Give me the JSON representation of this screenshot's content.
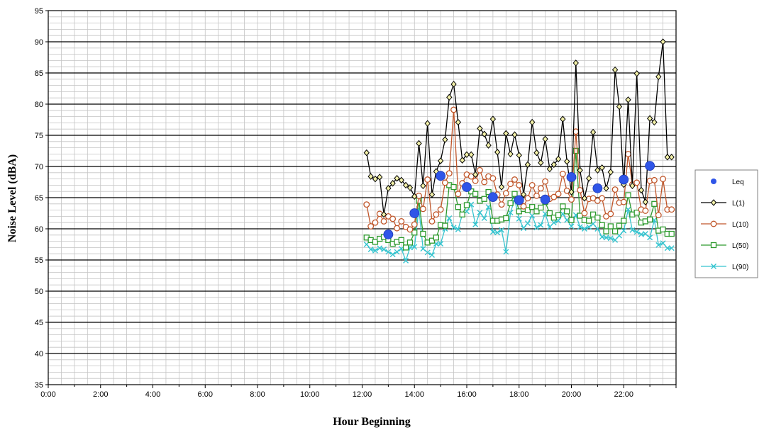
{
  "chart_data": {
    "type": "line",
    "title": "",
    "xlabel": "Hour Beginning",
    "ylabel": "Noise Level (dBA)",
    "xlim": [
      0,
      24
    ],
    "ylim": [
      35,
      95
    ],
    "x_ticks": [
      {
        "value": 0,
        "label": "0:00"
      },
      {
        "value": 2,
        "label": "2:00"
      },
      {
        "value": 4,
        "label": "4:00"
      },
      {
        "value": 6,
        "label": "6:00"
      },
      {
        "value": 8,
        "label": "8:00"
      },
      {
        "value": 10,
        "label": "10:00"
      },
      {
        "value": 12,
        "label": "12:00"
      },
      {
        "value": 14,
        "label": "14:00"
      },
      {
        "value": 16,
        "label": "16:00"
      },
      {
        "value": 18,
        "label": "18:00"
      },
      {
        "value": 20,
        "label": "20:00"
      },
      {
        "value": 22,
        "label": "22:00"
      }
    ],
    "y_ticks": [
      35,
      40,
      45,
      50,
      55,
      60,
      65,
      70,
      75,
      80,
      85,
      90,
      95
    ],
    "grid": true,
    "legend_position": "right",
    "series": [
      {
        "name": "Leq",
        "style": "markers",
        "marker": "circle",
        "color": "#2f55e8",
        "x": [
          13,
          14,
          15,
          16,
          17,
          18,
          19,
          20,
          21,
          22,
          23
        ],
        "y": [
          59.1,
          62.5,
          68.5,
          66.7,
          65.1,
          64.6,
          64.7,
          68.3,
          66.5,
          67.9,
          70.1
        ]
      },
      {
        "name": "L(1)",
        "style": "line",
        "marker": "diamond",
        "color": "#000000",
        "marker_fill": "#f2f0a8",
        "x": [
          12.17,
          12.33,
          12.5,
          12.67,
          12.83,
          13.0,
          13.17,
          13.33,
          13.5,
          13.67,
          13.83,
          14.0,
          14.17,
          14.33,
          14.5,
          14.67,
          14.83,
          15.0,
          15.17,
          15.33,
          15.5,
          15.67,
          15.83,
          16.0,
          16.17,
          16.33,
          16.5,
          16.67,
          16.83,
          17.0,
          17.17,
          17.33,
          17.5,
          17.67,
          17.83,
          18.0,
          18.17,
          18.33,
          18.5,
          18.67,
          18.83,
          19.0,
          19.17,
          19.33,
          19.5,
          19.67,
          19.83,
          20.0,
          20.17,
          20.33,
          20.5,
          20.67,
          20.83,
          21.0,
          21.17,
          21.33,
          21.5,
          21.67,
          21.83,
          22.0,
          22.17,
          22.33,
          22.5,
          22.67,
          22.83,
          23.0,
          23.17,
          23.33,
          23.5,
          23.67,
          23.83
        ],
        "y": [
          72.2,
          68.4,
          68.0,
          68.3,
          62.3,
          66.5,
          67.3,
          68.1,
          67.8,
          67.0,
          66.6,
          65.2,
          73.7,
          66.9,
          76.9,
          65.5,
          69.2,
          70.9,
          74.3,
          81.1,
          83.2,
          77.1,
          71.0,
          71.9,
          71.9,
          68.7,
          76.1,
          75.2,
          73.4,
          77.6,
          72.3,
          66.7,
          75.3,
          72.0,
          75.1,
          71.8,
          65.5,
          70.3,
          77.1,
          72.2,
          70.6,
          74.4,
          69.6,
          70.3,
          71.2,
          77.6,
          70.8,
          65.9,
          86.6,
          69.4,
          64.9,
          68.1,
          75.5,
          69.4,
          69.8,
          66.5,
          69.1,
          85.5,
          79.6,
          67.1,
          80.7,
          66.9,
          84.9,
          66.2,
          64.3,
          77.7,
          77.1,
          84.4,
          90.0,
          71.5,
          71.5
        ]
      },
      {
        "name": "L(10)",
        "style": "line",
        "marker": "circle-open",
        "color": "#c0562a",
        "x": [
          12.17,
          12.33,
          12.5,
          12.67,
          12.83,
          13.0,
          13.17,
          13.33,
          13.5,
          13.67,
          13.83,
          14.0,
          14.17,
          14.33,
          14.5,
          14.67,
          14.83,
          15.0,
          15.17,
          15.33,
          15.5,
          15.67,
          15.83,
          16.0,
          16.17,
          16.33,
          16.5,
          16.67,
          16.83,
          17.0,
          17.17,
          17.33,
          17.5,
          17.67,
          17.83,
          18.0,
          18.17,
          18.33,
          18.5,
          18.67,
          18.83,
          19.0,
          19.17,
          19.33,
          19.5,
          19.67,
          19.83,
          20.0,
          20.17,
          20.33,
          20.5,
          20.67,
          20.83,
          21.0,
          21.17,
          21.33,
          21.5,
          21.67,
          21.83,
          22.0,
          22.17,
          22.33,
          22.5,
          22.67,
          22.83,
          23.0,
          23.17,
          23.33,
          23.5,
          23.67,
          23.83
        ],
        "y": [
          63.9,
          60.4,
          61.0,
          62.4,
          61.2,
          62.0,
          61.6,
          60.1,
          61.2,
          60.3,
          59.9,
          60.7,
          65.3,
          63.2,
          67.9,
          61.2,
          62.3,
          63.1,
          67.4,
          68.9,
          79.1,
          65.6,
          67.3,
          68.7,
          68.4,
          67.7,
          69.4,
          67.5,
          68.4,
          68.1,
          65.5,
          63.9,
          65.7,
          67.2,
          67.9,
          67.0,
          63.6,
          64.9,
          67.0,
          65.3,
          66.5,
          67.6,
          64.8,
          65.1,
          65.6,
          68.8,
          66.1,
          64.7,
          75.6,
          66.2,
          62.5,
          64.8,
          64.9,
          64.5,
          64.9,
          62.0,
          62.4,
          66.3,
          64.2,
          64.3,
          72.0,
          67.1,
          67.4,
          63.1,
          62.9,
          67.7,
          67.8,
          62.2,
          68.0,
          63.1,
          63.1
        ]
      },
      {
        "name": "L(50)",
        "style": "line",
        "marker": "square-open",
        "color": "#2e9a2e",
        "x": [
          12.17,
          12.33,
          12.5,
          12.67,
          12.83,
          13.0,
          13.17,
          13.33,
          13.5,
          13.67,
          13.83,
          14.0,
          14.17,
          14.33,
          14.5,
          14.67,
          14.83,
          15.0,
          15.17,
          15.33,
          15.5,
          15.67,
          15.83,
          16.0,
          16.17,
          16.33,
          16.5,
          16.67,
          16.83,
          17.0,
          17.17,
          17.33,
          17.5,
          17.67,
          17.83,
          18.0,
          18.17,
          18.33,
          18.5,
          18.67,
          18.83,
          19.0,
          19.17,
          19.33,
          19.5,
          19.67,
          19.83,
          20.0,
          20.17,
          20.33,
          20.5,
          20.67,
          20.83,
          21.0,
          21.17,
          21.33,
          21.5,
          21.67,
          21.83,
          22.0,
          22.17,
          22.33,
          22.5,
          22.67,
          22.83,
          23.0,
          23.17,
          23.33,
          23.5,
          23.67,
          23.83
        ],
        "y": [
          58.6,
          58.2,
          57.9,
          58.4,
          58.7,
          58.2,
          57.6,
          57.9,
          58.2,
          57.0,
          57.8,
          59.4,
          64.5,
          59.2,
          57.8,
          58.1,
          58.6,
          60.6,
          60.5,
          67.0,
          66.7,
          63.5,
          62.3,
          63.8,
          66.0,
          65.6,
          64.5,
          64.8,
          65.9,
          61.3,
          61.3,
          61.5,
          61.7,
          64.1,
          65.6,
          62.8,
          63.2,
          63.0,
          63.5,
          62.8,
          63.4,
          64.3,
          62.5,
          61.8,
          62.2,
          63.6,
          62.8,
          61.4,
          72.5,
          62.1,
          61.4,
          61.3,
          62.3,
          61.8,
          60.6,
          59.6,
          60.4,
          59.6,
          60.5,
          61.3,
          65.4,
          62.3,
          62.6,
          61.0,
          61.2,
          61.5,
          64.0,
          59.7,
          59.9,
          59.2,
          59.2
        ]
      },
      {
        "name": "L(90)",
        "style": "line",
        "marker": "x",
        "color": "#35c4cf",
        "x": [
          12.17,
          12.33,
          12.5,
          12.67,
          12.83,
          13.0,
          13.17,
          13.33,
          13.5,
          13.67,
          13.83,
          14.0,
          14.17,
          14.33,
          14.5,
          14.67,
          14.83,
          15.0,
          15.17,
          15.33,
          15.5,
          15.67,
          15.83,
          16.0,
          16.17,
          16.33,
          16.5,
          16.67,
          16.83,
          17.0,
          17.17,
          17.33,
          17.5,
          17.67,
          17.83,
          18.0,
          18.17,
          18.33,
          18.5,
          18.67,
          18.83,
          19.0,
          19.17,
          19.33,
          19.5,
          19.67,
          19.83,
          20.0,
          20.17,
          20.33,
          20.5,
          20.67,
          20.83,
          21.0,
          21.17,
          21.33,
          21.5,
          21.67,
          21.83,
          22.0,
          22.17,
          22.33,
          22.5,
          22.67,
          22.83,
          23.0,
          23.17,
          23.33,
          23.5,
          23.67,
          23.83
        ],
        "y": [
          57.5,
          56.7,
          56.5,
          56.9,
          56.7,
          56.3,
          55.9,
          56.3,
          56.8,
          54.9,
          57.0,
          57.1,
          63.2,
          56.8,
          56.2,
          55.8,
          57.6,
          57.6,
          60.0,
          61.7,
          60.2,
          59.9,
          62.3,
          62.8,
          63.9,
          60.7,
          62.6,
          61.7,
          63.5,
          59.5,
          59.4,
          59.8,
          56.3,
          62.6,
          64.7,
          61.6,
          60.1,
          60.9,
          62.1,
          60.2,
          60.6,
          62.4,
          60.3,
          61.0,
          61.3,
          62.4,
          61.4,
          60.4,
          62.2,
          60.3,
          60.0,
          60.3,
          60.8,
          60.0,
          58.7,
          58.6,
          58.5,
          58.2,
          58.9,
          59.7,
          63.1,
          59.8,
          59.5,
          59.1,
          59.2,
          58.6,
          61.4,
          57.4,
          57.7,
          56.9,
          56.9
        ]
      }
    ]
  }
}
